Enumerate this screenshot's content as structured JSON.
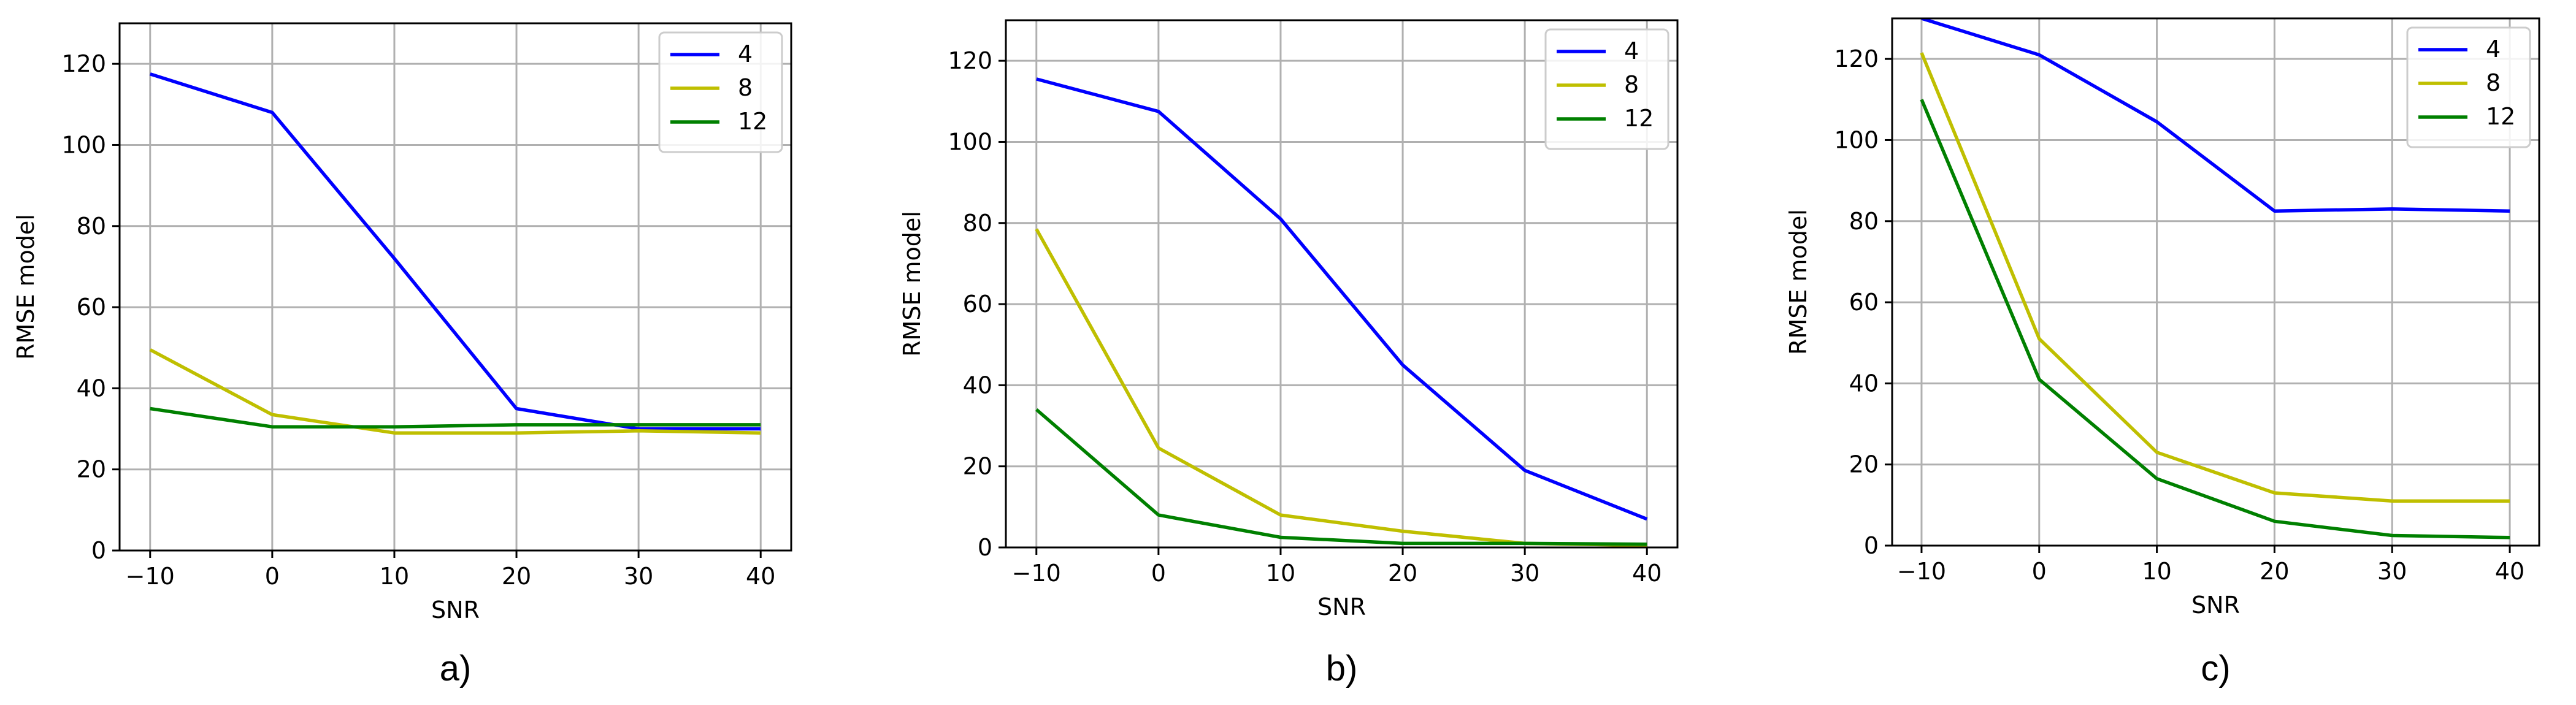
{
  "colors": {
    "4": "#0000ff",
    "8": "#bfbf00",
    "12": "#008000",
    "grid": "#b0b0b0"
  },
  "chart_data": [
    {
      "type": "line",
      "caption": "a)",
      "xlabel": "SNR",
      "ylabel": "RMSE model",
      "x": [
        -10,
        0,
        10,
        20,
        30,
        40
      ],
      "xticks": [
        -10,
        0,
        10,
        20,
        30,
        40
      ],
      "yticks": [
        0,
        20,
        40,
        60,
        80,
        100,
        120
      ],
      "xlim": [
        -12.5,
        42.5
      ],
      "ylim": [
        0,
        130
      ],
      "grid": true,
      "legend_position": "top-right",
      "series": [
        {
          "name": "4",
          "color": "#0000ff",
          "values": [
            117.5,
            108,
            72,
            35,
            30,
            30
          ]
        },
        {
          "name": "8",
          "color": "#bfbf00",
          "values": [
            49.5,
            33.5,
            29,
            29,
            29.5,
            29
          ]
        },
        {
          "name": "12",
          "color": "#008000",
          "values": [
            35,
            30.5,
            30.5,
            31,
            31,
            31
          ]
        }
      ]
    },
    {
      "type": "line",
      "caption": "b)",
      "xlabel": "SNR",
      "ylabel": "RMSE model",
      "x": [
        -10,
        0,
        10,
        20,
        30,
        40
      ],
      "xticks": [
        -10,
        0,
        10,
        20,
        30,
        40
      ],
      "yticks": [
        0,
        20,
        40,
        60,
        80,
        100,
        120
      ],
      "xlim": [
        -12.5,
        42.5
      ],
      "ylim": [
        0,
        130
      ],
      "grid": true,
      "legend_position": "top-right",
      "series": [
        {
          "name": "4",
          "color": "#0000ff",
          "values": [
            115.5,
            107.5,
            81,
            45,
            19,
            7
          ]
        },
        {
          "name": "8",
          "color": "#bfbf00",
          "values": [
            78.5,
            24.5,
            8,
            4,
            1,
            0.5
          ]
        },
        {
          "name": "12",
          "color": "#008000",
          "values": [
            34,
            8,
            2.5,
            1,
            1,
            0.8
          ]
        }
      ]
    },
    {
      "type": "line",
      "caption": "c)",
      "xlabel": "SNR",
      "ylabel": "RMSE model",
      "x": [
        -10,
        0,
        10,
        20,
        30,
        40
      ],
      "xticks": [
        -10,
        0,
        10,
        20,
        30,
        40
      ],
      "yticks": [
        0,
        20,
        40,
        60,
        80,
        100,
        120
      ],
      "xlim": [
        -12.5,
        42.5
      ],
      "ylim": [
        0,
        130
      ],
      "grid": true,
      "legend_position": "top-right",
      "series": [
        {
          "name": "4",
          "color": "#0000ff",
          "values": [
            130,
            121,
            104.5,
            82.5,
            83,
            82.5
          ]
        },
        {
          "name": "8",
          "color": "#bfbf00",
          "values": [
            121.5,
            51,
            23,
            13,
            11,
            11
          ]
        },
        {
          "name": "12",
          "color": "#008000",
          "values": [
            110,
            41,
            16.5,
            6,
            2.5,
            2
          ]
        }
      ]
    }
  ]
}
